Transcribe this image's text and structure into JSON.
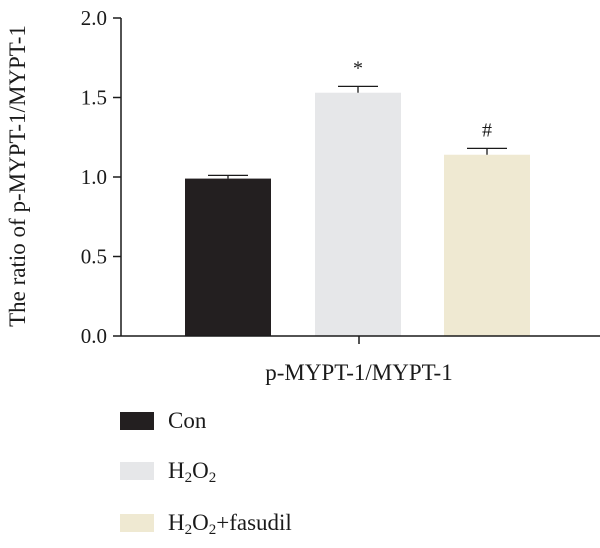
{
  "chart_data": {
    "type": "bar",
    "ylabel": "The ratio of p-MYPT-1/MYPT-1",
    "xlabel": "p-MYPT-1/MYPT-1",
    "ylim": [
      0,
      2.0
    ],
    "yticks": [
      "0.0",
      "0.5",
      "1.0",
      "1.5",
      "2.0"
    ],
    "grid": false,
    "legend_position": "bottom-left",
    "series": [
      {
        "name": "Con",
        "value": 0.99,
        "error": 0.02,
        "color": "#231f20",
        "annotation": "",
        "legend_main": "Con",
        "legend_sub": "",
        "legend_tail": ""
      },
      {
        "name": "H2O2",
        "value": 1.53,
        "error": 0.04,
        "color": "#e6e7e9",
        "annotation": "*",
        "legend_main": "H",
        "legend_sub": "2",
        "legend_mid": "O",
        "legend_sub2": "2",
        "legend_tail": ""
      },
      {
        "name": "H2O2+fasudil",
        "value": 1.14,
        "error": 0.04,
        "color": "#efe9d2",
        "annotation": "#",
        "legend_main": "H",
        "legend_sub": "2",
        "legend_mid": "O",
        "legend_sub2": "2",
        "legend_tail": "+fasudil"
      }
    ]
  }
}
